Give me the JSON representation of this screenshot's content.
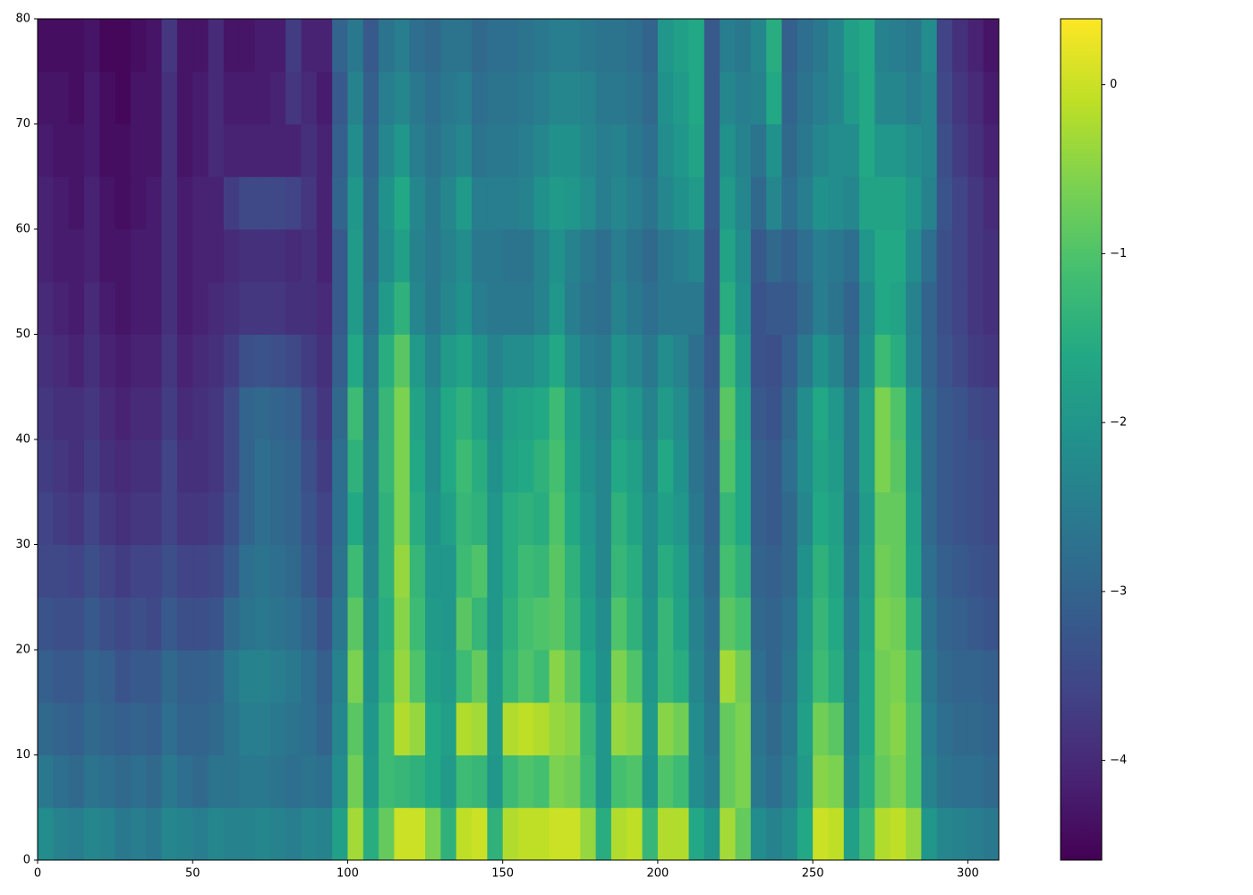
{
  "chart_data": {
    "type": "heatmap",
    "cmap": "viridis",
    "xlim": [
      0,
      310
    ],
    "ylim": [
      0,
      80
    ],
    "xticks": [
      0,
      50,
      100,
      150,
      200,
      250,
      300
    ],
    "yticks": [
      0,
      10,
      20,
      30,
      40,
      50,
      60,
      70,
      80
    ],
    "colorbar": {
      "clim": [
        -4.59,
        0.39
      ],
      "ticks": [
        0,
        {
          "value": -1,
          "label": "−1"
        },
        {
          "value": -2,
          "label": "−2"
        },
        {
          "value": -3,
          "label": "−3"
        },
        {
          "value": -4,
          "label": "−4"
        }
      ]
    },
    "z": [
      [
        -2.2,
        -2.4,
        -2.5,
        -2.3,
        -2.4,
        -2.6,
        -2.5,
        -2.6,
        -2.3,
        -2.4,
        -2.5,
        -2.3,
        -2.4,
        -2.4,
        -2.3,
        -2.4,
        -2.5,
        -2.3,
        -2.4,
        -1.8,
        -0.3,
        -1.5,
        -0.8,
        0.0,
        0.0,
        -0.6,
        -1.4,
        -0.1,
        0.0,
        -1.4,
        -0.2,
        -0.1,
        -0.1,
        0.0,
        0.0,
        -0.4,
        -1.5,
        -0.2,
        -0.1,
        -1.3,
        -0.2,
        -0.2,
        -1.6,
        -2.0,
        -0.3,
        -0.8,
        -2.2,
        -2.4,
        -2.2,
        -1.6,
        0.0,
        -0.1,
        -1.8,
        -1.2,
        -0.2,
        -0.1,
        -0.4,
        -2.0,
        -2.3,
        -2.4,
        -2.5,
        -2.6
      ],
      [
        -2.6,
        -2.8,
        -2.9,
        -2.7,
        -2.8,
        -2.9,
        -2.8,
        -2.9,
        -2.6,
        -2.8,
        -2.9,
        -2.7,
        -2.7,
        -2.6,
        -2.6,
        -2.7,
        -2.8,
        -2.7,
        -2.8,
        -2.2,
        -0.7,
        -1.9,
        -1.2,
        -1.3,
        -1.4,
        -1.6,
        -1.9,
        -1.2,
        -1.3,
        -2.0,
        -1.2,
        -1.0,
        -1.1,
        -0.6,
        -0.7,
        -1.2,
        -2.0,
        -1.1,
        -1.0,
        -2.0,
        -1.0,
        -1.2,
        -2.2,
        -2.5,
        -0.8,
        -0.6,
        -2.6,
        -2.8,
        -2.5,
        -1.9,
        -0.5,
        -0.6,
        -2.2,
        -1.5,
        -0.8,
        -0.6,
        -1.0,
        -2.4,
        -2.7,
        -2.8,
        -2.8,
        -2.9
      ],
      [
        -2.9,
        -3.0,
        -3.1,
        -2.9,
        -3.0,
        -3.1,
        -3.0,
        -3.1,
        -2.8,
        -3.0,
        -3.0,
        -2.9,
        -2.7,
        -2.5,
        -2.5,
        -2.6,
        -2.7,
        -2.8,
        -3.0,
        -2.3,
        -0.9,
        -2.0,
        -1.2,
        -0.2,
        -0.4,
        -1.6,
        -1.8,
        -0.2,
        -0.3,
        -1.9,
        -0.2,
        -0.1,
        -0.2,
        -0.4,
        -0.5,
        -1.3,
        -2.0,
        -0.4,
        -0.5,
        -1.9,
        -0.5,
        -0.7,
        -2.2,
        -2.6,
        -0.8,
        -0.6,
        -2.7,
        -2.9,
        -2.6,
        -1.8,
        -0.7,
        -0.9,
        -2.3,
        -1.6,
        -0.7,
        -0.5,
        -1.0,
        -2.5,
        -2.8,
        -2.9,
        -2.9,
        -3.0
      ],
      [
        -3.1,
        -3.2,
        -3.2,
        -3.0,
        -3.1,
        -3.3,
        -3.2,
        -3.2,
        -2.9,
        -3.1,
        -3.1,
        -3.0,
        -2.6,
        -2.4,
        -2.4,
        -2.5,
        -2.6,
        -2.8,
        -3.1,
        -2.4,
        -0.6,
        -2.1,
        -1.4,
        -0.4,
        -1.0,
        -1.8,
        -1.9,
        -1.2,
        -0.8,
        -1.9,
        -1.3,
        -1.0,
        -1.2,
        -0.5,
        -0.9,
        -1.6,
        -2.1,
        -0.6,
        -1.0,
        -2.0,
        -1.3,
        -1.5,
        -2.3,
        -2.7,
        -0.3,
        -0.7,
        -2.8,
        -3.0,
        -2.7,
        -1.9,
        -1.2,
        -1.5,
        -2.4,
        -1.6,
        -0.7,
        -0.6,
        -1.1,
        -2.6,
        -2.9,
        -3.0,
        -3.0,
        -3.1
      ],
      [
        -3.3,
        -3.4,
        -3.4,
        -3.2,
        -3.4,
        -3.5,
        -3.4,
        -3.5,
        -3.2,
        -3.4,
        -3.4,
        -3.3,
        -2.9,
        -2.7,
        -2.6,
        -2.7,
        -2.8,
        -3.0,
        -3.3,
        -2.6,
        -0.9,
        -2.2,
        -1.5,
        -0.5,
        -1.2,
        -1.9,
        -2.0,
        -0.9,
        -1.3,
        -2.0,
        -1.4,
        -1.1,
        -1.0,
        -0.9,
        -1.3,
        -1.8,
        -2.2,
        -1.0,
        -1.4,
        -2.1,
        -1.3,
        -1.7,
        -2.4,
        -2.8,
        -0.9,
        -1.1,
        -2.9,
        -3.0,
        -2.8,
        -2.0,
        -1.3,
        -1.6,
        -2.5,
        -1.7,
        -0.6,
        -0.7,
        -1.4,
        -2.7,
        -3.0,
        -3.1,
        -3.2,
        -3.3
      ],
      [
        -3.5,
        -3.5,
        -3.6,
        -3.4,
        -3.6,
        -3.7,
        -3.6,
        -3.6,
        -3.4,
        -3.6,
        -3.6,
        -3.5,
        -3.2,
        -2.8,
        -2.7,
        -2.8,
        -2.9,
        -3.2,
        -3.5,
        -2.7,
        -1.2,
        -2.3,
        -1.4,
        -0.4,
        -1.3,
        -2.0,
        -2.0,
        -1.2,
        -1.0,
        -2.0,
        -1.5,
        -1.2,
        -1.3,
        -0.9,
        -1.4,
        -1.9,
        -2.3,
        -1.3,
        -1.5,
        -2.2,
        -1.5,
        -1.8,
        -2.5,
        -2.9,
        -1.1,
        -1.4,
        -3.0,
        -3.1,
        -2.9,
        -2.1,
        -1.4,
        -1.7,
        -2.6,
        -1.8,
        -0.7,
        -0.8,
        -1.7,
        -2.8,
        -3.1,
        -3.2,
        -3.3,
        -3.4
      ],
      [
        -3.6,
        -3.7,
        -3.8,
        -3.6,
        -3.8,
        -3.9,
        -3.8,
        -3.8,
        -3.6,
        -3.8,
        -3.8,
        -3.7,
        -3.4,
        -3.0,
        -2.8,
        -2.9,
        -3.0,
        -3.3,
        -3.6,
        -2.8,
        -1.6,
        -2.4,
        -1.4,
        -0.6,
        -1.5,
        -2.1,
        -1.8,
        -1.3,
        -1.4,
        -2.0,
        -1.5,
        -1.4,
        -1.5,
        -1.0,
        -1.6,
        -2.0,
        -2.3,
        -1.4,
        -1.7,
        -2.2,
        -1.8,
        -2.0,
        -2.6,
        -3.0,
        -1.3,
        -1.6,
        -3.1,
        -3.2,
        -2.9,
        -2.3,
        -1.6,
        -1.8,
        -2.7,
        -1.9,
        -0.8,
        -0.8,
        -1.8,
        -2.9,
        -3.2,
        -3.3,
        -3.4,
        -3.5
      ],
      [
        -3.7,
        -3.8,
        -3.9,
        -3.7,
        -3.9,
        -4.0,
        -3.9,
        -3.9,
        -3.6,
        -3.9,
        -3.9,
        -3.8,
        -3.5,
        -3.0,
        -2.8,
        -2.9,
        -3.0,
        -3.4,
        -3.7,
        -2.8,
        -1.4,
        -2.4,
        -1.3,
        -0.6,
        -1.6,
        -2.2,
        -1.6,
        -1.2,
        -1.5,
        -2.1,
        -1.7,
        -1.6,
        -1.4,
        -1.1,
        -1.7,
        -2.1,
        -2.3,
        -1.6,
        -1.8,
        -2.3,
        -1.6,
        -2.1,
        -2.7,
        -3.0,
        -1.0,
        -1.6,
        -3.1,
        -3.2,
        -2.8,
        -2.2,
        -1.7,
        -1.9,
        -2.6,
        -1.8,
        -0.6,
        -0.9,
        -1.9,
        -2.9,
        -3.2,
        -3.3,
        -3.4,
        -3.5
      ],
      [
        -3.8,
        -3.9,
        -3.9,
        -3.8,
        -4.0,
        -4.1,
        -4.0,
        -4.0,
        -3.7,
        -4.0,
        -3.9,
        -3.8,
        -3.5,
        -3.0,
        -2.9,
        -3.0,
        -3.1,
        -3.5,
        -3.8,
        -2.9,
        -1.2,
        -2.5,
        -1.3,
        -0.6,
        -1.7,
        -2.2,
        -1.6,
        -1.4,
        -1.7,
        -2.2,
        -1.8,
        -1.7,
        -1.6,
        -1.2,
        -1.8,
        -2.2,
        -2.4,
        -1.8,
        -2.0,
        -2.4,
        -1.9,
        -2.2,
        -2.7,
        -3.1,
        -0.9,
        -1.7,
        -3.2,
        -3.3,
        -2.9,
        -2.2,
        -1.6,
        -2.0,
        -2.6,
        -1.8,
        -0.6,
        -1.0,
        -2.0,
        -2.9,
        -3.2,
        -3.3,
        -3.5,
        -3.6
      ],
      [
        -3.9,
        -4.0,
        -4.1,
        -3.9,
        -4.1,
        -4.2,
        -4.1,
        -4.1,
        -3.8,
        -4.1,
        -4.0,
        -3.9,
        -3.7,
        -3.4,
        -3.3,
        -3.4,
        -3.5,
        -3.7,
        -3.9,
        -3.1,
        -1.6,
        -2.6,
        -1.5,
        -0.9,
        -1.9,
        -2.4,
        -1.9,
        -1.7,
        -2.1,
        -2.4,
        -2.2,
        -2.2,
        -2.0,
        -1.6,
        -2.2,
        -2.5,
        -2.6,
        -2.1,
        -2.3,
        -2.6,
        -2.2,
        -2.4,
        -2.8,
        -3.2,
        -1.2,
        -1.9,
        -3.3,
        -3.4,
        -3.1,
        -2.6,
        -2.1,
        -2.4,
        -2.9,
        -2.1,
        -1.2,
        -1.5,
        -2.3,
        -3.0,
        -3.3,
        -3.5,
        -3.7,
        -3.8
      ],
      [
        -4.0,
        -4.1,
        -4.2,
        -4.0,
        -4.2,
        -4.3,
        -4.2,
        -4.2,
        -3.9,
        -4.2,
        -4.1,
        -4.0,
        -3.9,
        -3.8,
        -3.8,
        -3.8,
        -3.9,
        -3.9,
        -4.0,
        -3.2,
        -1.9,
        -2.8,
        -1.9,
        -1.4,
        -2.3,
        -2.6,
        -2.3,
        -2.1,
        -2.5,
        -2.6,
        -2.6,
        -2.6,
        -2.4,
        -2.0,
        -2.5,
        -2.7,
        -2.8,
        -2.4,
        -2.6,
        -2.8,
        -2.6,
        -2.6,
        -2.6,
        -3.3,
        -1.5,
        -2.1,
        -3.3,
        -3.2,
        -3.2,
        -2.9,
        -2.5,
        -2.7,
        -3.0,
        -2.2,
        -1.6,
        -1.7,
        -2.4,
        -3.0,
        -3.4,
        -3.6,
        -3.8,
        -3.9
      ],
      [
        -4.1,
        -4.2,
        -4.2,
        -4.1,
        -4.3,
        -4.3,
        -4.2,
        -4.2,
        -3.9,
        -4.2,
        -4.1,
        -4.1,
        -4.0,
        -3.9,
        -3.9,
        -3.9,
        -4.0,
        -3.9,
        -4.1,
        -3.2,
        -1.9,
        -2.9,
        -2.2,
        -1.8,
        -2.4,
        -2.6,
        -2.4,
        -2.2,
        -2.6,
        -2.6,
        -2.7,
        -2.7,
        -2.4,
        -2.1,
        -2.4,
        -2.6,
        -2.8,
        -2.5,
        -2.7,
        -2.9,
        -2.6,
        -2.5,
        -2.3,
        -3.3,
        -1.7,
        -2.2,
        -3.2,
        -2.9,
        -3.1,
        -2.8,
        -2.5,
        -2.6,
        -2.8,
        -2.0,
        -1.6,
        -1.6,
        -2.2,
        -2.8,
        -3.4,
        -3.6,
        -3.8,
        -3.9
      ],
      [
        -4.1,
        -4.2,
        -4.3,
        -4.1,
        -4.3,
        -4.4,
        -4.3,
        -4.2,
        -3.9,
        -4.2,
        -4.1,
        -4.1,
        -3.7,
        -3.5,
        -3.5,
        -3.5,
        -3.6,
        -3.8,
        -4.1,
        -3.0,
        -2.0,
        -2.9,
        -2.1,
        -1.6,
        -2.3,
        -2.6,
        -2.3,
        -1.9,
        -2.5,
        -2.5,
        -2.5,
        -2.4,
        -2.1,
        -1.9,
        -2.0,
        -2.2,
        -2.5,
        -2.3,
        -2.5,
        -2.7,
        -2.3,
        -2.1,
        -1.9,
        -3.2,
        -1.9,
        -2.3,
        -2.9,
        -2.3,
        -2.8,
        -2.5,
        -2.1,
        -2.2,
        -2.3,
        -1.7,
        -1.7,
        -1.7,
        -2.0,
        -2.4,
        -3.3,
        -3.6,
        -3.8,
        -4.0
      ],
      [
        -4.2,
        -4.3,
        -4.3,
        -4.2,
        -4.4,
        -4.4,
        -4.3,
        -4.3,
        -3.9,
        -4.3,
        -4.2,
        -4.0,
        -4.1,
        -4.1,
        -4.1,
        -4.1,
        -4.1,
        -3.9,
        -4.1,
        -3.1,
        -2.2,
        -3.0,
        -2.3,
        -2.0,
        -2.5,
        -2.7,
        -2.5,
        -2.3,
        -2.7,
        -2.6,
        -2.6,
        -2.5,
        -2.3,
        -2.1,
        -2.1,
        -2.3,
        -2.5,
        -2.4,
        -2.6,
        -2.8,
        -2.2,
        -2.0,
        -1.7,
        -3.2,
        -2.1,
        -2.4,
        -2.7,
        -2.1,
        -2.9,
        -2.6,
        -2.3,
        -2.2,
        -2.2,
        -1.6,
        -2.0,
        -2.0,
        -2.2,
        -2.3,
        -3.4,
        -3.7,
        -3.9,
        -4.1
      ],
      [
        -4.3,
        -4.3,
        -4.4,
        -4.2,
        -4.4,
        -4.5,
        -4.3,
        -4.3,
        -3.9,
        -4.3,
        -4.2,
        -4.0,
        -4.2,
        -4.2,
        -4.2,
        -4.1,
        -3.8,
        -4.0,
        -4.2,
        -3.2,
        -2.4,
        -3.1,
        -2.5,
        -2.3,
        -2.6,
        -2.8,
        -2.6,
        -2.5,
        -2.8,
        -2.7,
        -2.7,
        -2.6,
        -2.5,
        -2.3,
        -2.3,
        -2.4,
        -2.6,
        -2.6,
        -2.7,
        -2.9,
        -2.1,
        -1.9,
        -1.6,
        -3.2,
        -2.3,
        -2.5,
        -2.4,
        -1.6,
        -3.0,
        -2.7,
        -2.5,
        -2.3,
        -1.9,
        -1.6,
        -2.3,
        -2.3,
        -2.5,
        -2.3,
        -3.5,
        -3.8,
        -4.0,
        -4.2
      ],
      [
        -4.4,
        -4.4,
        -4.4,
        -4.3,
        -4.5,
        -4.5,
        -4.4,
        -4.3,
        -3.8,
        -4.3,
        -4.3,
        -4.0,
        -4.3,
        -4.3,
        -4.2,
        -4.2,
        -3.7,
        -4.1,
        -4.1,
        -3.0,
        -2.6,
        -3.2,
        -2.7,
        -2.5,
        -2.8,
        -2.9,
        -2.7,
        -2.7,
        -2.9,
        -2.8,
        -2.8,
        -2.7,
        -2.6,
        -2.5,
        -2.5,
        -2.6,
        -2.7,
        -2.7,
        -2.8,
        -3.0,
        -2.0,
        -1.8,
        -1.6,
        -3.2,
        -2.5,
        -2.6,
        -2.3,
        -1.5,
        -3.1,
        -2.8,
        -2.6,
        -2.3,
        -1.8,
        -1.6,
        -2.4,
        -2.5,
        -2.6,
        -2.2,
        -3.6,
        -3.9,
        -4.1,
        -4.3
      ]
    ]
  }
}
